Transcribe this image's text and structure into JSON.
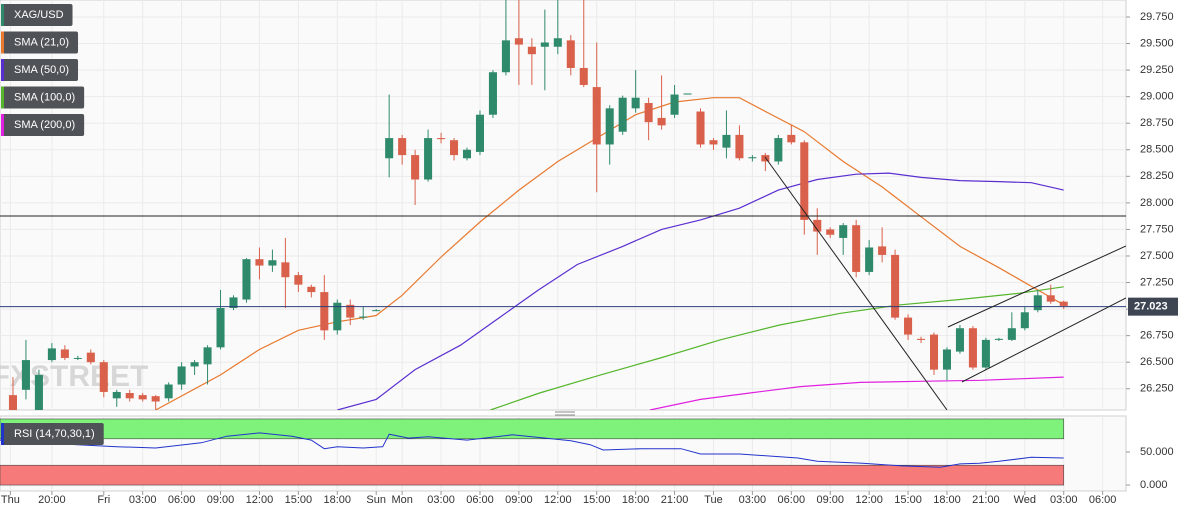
{
  "chart_data": [
    {
      "type": "candlestick",
      "name": "XAG/USD",
      "up_color": "#2f8a6c",
      "down_color": "#d9604a",
      "watermark": "FXSTREET",
      "x": [
        1,
        2,
        3,
        4,
        5,
        6,
        7,
        8,
        9,
        10,
        11,
        12,
        13,
        14,
        15,
        16,
        17,
        18,
        19,
        20,
        21,
        22,
        23,
        24,
        25,
        26,
        27,
        28,
        29,
        30,
        31,
        32,
        33,
        34,
        35,
        36,
        37,
        38,
        39,
        40,
        41,
        42,
        43,
        44,
        45,
        46,
        47,
        48,
        49,
        50,
        51,
        52,
        53,
        54,
        55,
        56,
        57,
        58,
        59,
        60,
        61,
        62,
        63,
        64,
        65,
        66,
        67,
        68,
        69,
        70,
        71,
        72,
        73,
        74,
        75,
        76,
        77,
        78,
        79,
        80,
        81,
        82
      ],
      "open": [
        26.19,
        26.24,
        26.05,
        26.52,
        26.62,
        26.54,
        26.59,
        26.5,
        26.16,
        26.21,
        26.19,
        26.18,
        26.16,
        26.29,
        26.46,
        26.48,
        26.64,
        27.01,
        27.09,
        27.47,
        27.41,
        27.44,
        27.32,
        27.21,
        27.16,
        26.8,
        27.04,
        26.92,
        26.99,
        28.42,
        28.61,
        28.45,
        28.22,
        28.61,
        28.59,
        28.42,
        28.48,
        28.83,
        29.23,
        29.55,
        29.47,
        29.47,
        29.47,
        29.53,
        29.27,
        29.09,
        28.55,
        28.67,
        28.89,
        28.94,
        28.8,
        28.83,
        29.02,
        28.86,
        28.59,
        28.52,
        28.64,
        28.42,
        28.45,
        28.39,
        28.64,
        28.57,
        27.84,
        27.75,
        27.67,
        27.79,
        27.35,
        27.59,
        27.51,
        26.92,
        26.72,
        26.76,
        26.43,
        26.6,
        26.82,
        26.45,
        26.71,
        26.71,
        26.82,
        26.99,
        27.13,
        27.07
      ],
      "high": [
        26.36,
        26.71,
        26.43,
        26.68,
        26.66,
        26.56,
        26.62,
        26.52,
        26.24,
        26.24,
        26.21,
        26.19,
        26.31,
        26.5,
        26.52,
        26.66,
        27.18,
        27.13,
        27.48,
        27.58,
        27.56,
        27.67,
        27.35,
        27.23,
        27.32,
        27.09,
        27.09,
        27.02,
        27.0,
        29.02,
        28.64,
        28.5,
        28.69,
        28.66,
        28.61,
        28.52,
        28.87,
        29.25,
        29.91,
        29.91,
        29.55,
        29.82,
        29.91,
        29.58,
        29.91,
        29.51,
        28.92,
        29.01,
        29.25,
        28.99,
        29.2,
        29.11,
        29.03,
        28.89,
        28.61,
        28.87,
        28.73,
        28.45,
        28.47,
        28.64,
        28.73,
        28.59,
        27.95,
        27.77,
        27.81,
        27.84,
        27.65,
        27.77,
        27.56,
        26.95,
        26.74,
        26.78,
        26.64,
        26.85,
        26.84,
        26.73,
        26.73,
        26.97,
        27.02,
        27.18,
        27.23,
        27.08
      ],
      "low": [
        26.05,
        26.15,
        26.05,
        26.5,
        26.52,
        26.52,
        26.48,
        26.17,
        26.08,
        26.13,
        26.13,
        26.05,
        26.13,
        26.24,
        26.38,
        26.29,
        26.62,
        26.99,
        27.06,
        27.28,
        27.35,
        27.01,
        27.16,
        27.11,
        26.71,
        26.76,
        26.85,
        26.9,
        26.98,
        28.24,
        28.36,
        27.98,
        28.2,
        28.56,
        28.4,
        28.4,
        28.45,
        28.8,
        29.2,
        29.11,
        29.11,
        29.06,
        29.4,
        29.2,
        29.09,
        28.1,
        28.36,
        28.64,
        28.85,
        28.59,
        28.69,
        28.8,
        29.02,
        28.52,
        28.5,
        28.42,
        28.4,
        28.39,
        28.3,
        28.36,
        28.55,
        27.7,
        27.51,
        27.67,
        27.51,
        27.3,
        27.32,
        27.44,
        26.9,
        26.71,
        26.68,
        26.38,
        26.33,
        26.58,
        26.43,
        26.43,
        26.7,
        26.7,
        26.8,
        26.97,
        27.05,
        27.0
      ],
      "close": [
        26.05,
        26.52,
        26.38,
        26.63,
        26.54,
        26.54,
        26.5,
        26.22,
        26.22,
        26.16,
        26.15,
        26.13,
        26.29,
        26.46,
        26.5,
        26.64,
        27.01,
        27.11,
        27.47,
        27.41,
        27.46,
        27.3,
        27.23,
        27.16,
        26.8,
        27.06,
        26.92,
        26.93,
        26.99,
        28.61,
        28.45,
        28.22,
        28.61,
        28.6,
        28.45,
        28.5,
        28.83,
        29.23,
        29.53,
        29.49,
        29.4,
        29.51,
        29.55,
        29.27,
        29.11,
        28.55,
        28.89,
        28.99,
        28.99,
        28.76,
        28.73,
        29.02,
        29.03,
        28.55,
        28.55,
        28.64,
        28.42,
        28.43,
        28.39,
        28.61,
        28.57,
        27.84,
        27.73,
        27.7,
        27.79,
        27.35,
        27.58,
        27.51,
        26.92,
        26.76,
        26.71,
        26.43,
        26.62,
        26.82,
        26.45,
        26.71,
        26.72,
        26.82,
        26.97,
        27.13,
        27.07,
        27.03
      ],
      "overlays": [
        {
          "name": "SMA (21,0)",
          "color": "#e8792f",
          "x": [
            12,
            17,
            20,
            23,
            26,
            29,
            31,
            34,
            37,
            40,
            43,
            46,
            49,
            52,
            55,
            57,
            59,
            62,
            65,
            68,
            71,
            74,
            77,
            80,
            82
          ],
          "values": [
            26.05,
            26.38,
            26.62,
            26.8,
            26.88,
            26.94,
            27.13,
            27.49,
            27.82,
            28.12,
            28.39,
            28.61,
            28.83,
            28.95,
            28.99,
            28.99,
            28.86,
            28.67,
            28.39,
            28.15,
            27.87,
            27.59,
            27.39,
            27.18,
            27.04
          ]
        },
        {
          "name": "SMA (50,0)",
          "color": "#5a2fd0",
          "x": [
            26,
            29,
            32,
            35.5,
            38.5,
            41.5,
            44.5,
            48,
            51,
            54,
            57,
            60,
            63,
            66,
            68.5,
            71,
            74,
            77,
            79.5,
            82
          ],
          "values": [
            26.05,
            26.15,
            26.43,
            26.66,
            26.92,
            27.18,
            27.42,
            27.59,
            27.75,
            27.84,
            27.95,
            28.12,
            28.22,
            28.27,
            28.28,
            28.24,
            28.21,
            28.2,
            28.19,
            28.12
          ]
        },
        {
          "name": "SMA (100,0)",
          "color": "#55b52c",
          "x": [
            37.8,
            41.6,
            46.3,
            50.9,
            55.5,
            60.1,
            64.8,
            69.4,
            74,
            78.6,
            82
          ],
          "values": [
            26.05,
            26.21,
            26.38,
            26.54,
            26.71,
            26.85,
            26.96,
            27.04,
            27.09,
            27.15,
            27.21
          ]
        },
        {
          "name": "SMA (200,0)",
          "color": "#e020e0",
          "x": [
            50.1,
            54,
            57.8,
            61.7,
            66.3,
            70.9,
            75.6,
            82
          ],
          "values": [
            26.05,
            26.15,
            26.21,
            26.27,
            26.31,
            26.32,
            26.33,
            26.36
          ]
        }
      ],
      "last_price": 27.023,
      "last_price_color": "#2c3e7a",
      "xlim": [
        0,
        86.8
      ],
      "ylim": [
        26.05,
        29.91
      ],
      "yticks": [
        {
          "value": 26.25,
          "label": "26.250"
        },
        {
          "value": 26.5,
          "label": "26.500"
        },
        {
          "value": 26.75,
          "label": "26.750"
        },
        {
          "value": 27,
          "label": "27.000"
        },
        {
          "value": 27.25,
          "label": "27.250"
        },
        {
          "value": 27.5,
          "label": "27.500"
        },
        {
          "value": 27.75,
          "label": "27.750"
        },
        {
          "value": 28,
          "label": "28.000"
        },
        {
          "value": 28.25,
          "label": "28.250"
        },
        {
          "value": 28.5,
          "label": "28.500"
        },
        {
          "value": 28.75,
          "label": "28.750"
        },
        {
          "value": 29,
          "label": "29.000"
        },
        {
          "value": 29.25,
          "label": "29.250"
        },
        {
          "value": 29.5,
          "label": "29.500"
        },
        {
          "value": 29.75,
          "label": "29.750"
        }
      ],
      "grid": true
    },
    {
      "type": "line",
      "series": [
        {
          "name": "RSI (14,70,30,1)",
          "color": "#2233cc",
          "x": [
            0,
            3,
            6,
            9,
            12,
            15.5,
            17.5,
            20,
            22.5,
            24,
            25,
            26,
            28,
            29.5,
            30,
            31.5,
            33,
            36,
            39.5,
            42.5,
            44,
            45.5,
            46.5,
            49.5,
            52.5,
            54,
            57,
            61.5,
            63,
            66.5,
            69.5,
            72.5,
            74,
            75.5,
            77,
            79.5,
            82
          ],
          "values": [
            68,
            64,
            61,
            58,
            56,
            64,
            74,
            79,
            74,
            68,
            55,
            58,
            56,
            58,
            77,
            71,
            73,
            68,
            76,
            70,
            67,
            61,
            53,
            55,
            55,
            47,
            47,
            41,
            36,
            33,
            29,
            27,
            32,
            33,
            36,
            42,
            41
          ]
        }
      ],
      "upper_band": [
        70,
        100
      ],
      "upper_band_color": "#7ef27a",
      "lower_band": [
        0,
        30
      ],
      "lower_band_color": "#f77a7a",
      "xlim": [
        0,
        86.8
      ],
      "ylim": [
        -9,
        104.5
      ],
      "yticks": [
        {
          "value": 0,
          "label": "0.000"
        },
        {
          "value": 50,
          "label": "50.000"
        }
      ],
      "xticks": [
        {
          "value": 0.8,
          "label": "Thu"
        },
        {
          "value": 4,
          "label": "20:00"
        },
        {
          "value": 8,
          "label": "Fri"
        },
        {
          "value": 11,
          "label": "03:00"
        },
        {
          "value": 14,
          "label": "06:00"
        },
        {
          "value": 17,
          "label": "09:00"
        },
        {
          "value": 20,
          "label": "12:00"
        },
        {
          "value": 23,
          "label": "15:00"
        },
        {
          "value": 26,
          "label": "18:00"
        },
        {
          "value": 29,
          "label": "Sun"
        },
        {
          "value": 31,
          "label": "Mon"
        },
        {
          "value": 34,
          "label": "03:00"
        },
        {
          "value": 37,
          "label": "06:00"
        },
        {
          "value": 40,
          "label": "09:00"
        },
        {
          "value": 43,
          "label": "12:00"
        },
        {
          "value": 46,
          "label": "15:00"
        },
        {
          "value": 49,
          "label": "18:00"
        },
        {
          "value": 52,
          "label": "21:00"
        },
        {
          "value": 55,
          "label": "Tue"
        },
        {
          "value": 58,
          "label": "03:00"
        },
        {
          "value": 61,
          "label": "06:00"
        },
        {
          "value": 64,
          "label": "09:00"
        },
        {
          "value": 67,
          "label": "12:00"
        },
        {
          "value": 70,
          "label": "15:00"
        },
        {
          "value": 73,
          "label": "18:00"
        },
        {
          "value": 76,
          "label": "21:00"
        },
        {
          "value": 79,
          "label": "Wed"
        },
        {
          "value": 82,
          "label": "03:00"
        },
        {
          "value": 85,
          "label": "06:00"
        }
      ],
      "grid": true
    }
  ]
}
